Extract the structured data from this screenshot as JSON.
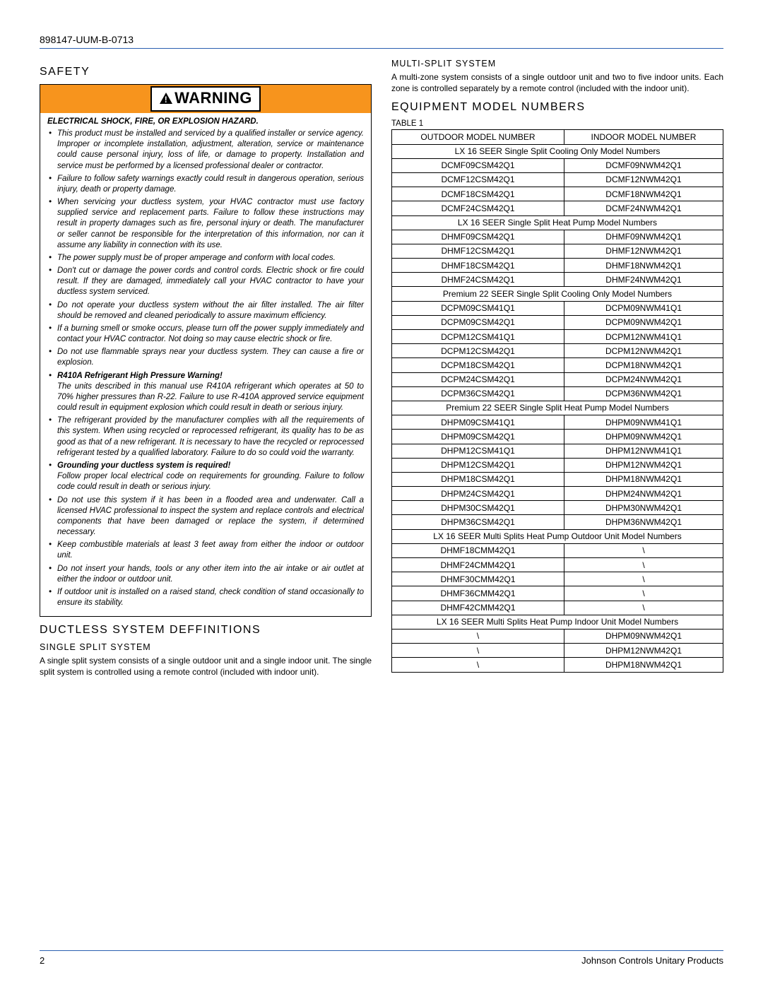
{
  "doc_id": "898147-UUM-B-0713",
  "colors": {
    "rule": "#2a5fb0",
    "warning_bg": "#f7941d",
    "text": "#000000",
    "page_bg": "#ffffff"
  },
  "left": {
    "safety_title": "SAFETY",
    "warning_label": "WARNING",
    "hazard_line": "ELECTRICAL SHOCK, FIRE, OR EXPLOSION HAZARD.",
    "bullets": [
      {
        "text": "This product must be installed and serviced by a qualified installer or service agency. Improper or incomplete installation, adjustment, alteration, service or maintenance could cause personal injury, loss of life, or damage to property. Installation and service must be performed by a licensed professional dealer or contractor."
      },
      {
        "text": "Failure to follow safety warnings exactly could result in dangerous operation, serious injury, death or property damage."
      },
      {
        "text": "When servicing your ductless system, your HVAC contractor must use factory supplied service and replacement parts. Failure to follow these instructions may result in property damages such as fire, personal injury or death. The manufacturer or seller cannot be responsible for the interpretation of this information, nor can it assume any liability in connection with its use."
      },
      {
        "text": "The power supply must be of proper amperage and conform with local codes."
      },
      {
        "text": "Don't cut or damage the power cords and control cords. Electric shock or fire could result. If they are damaged, immediately call your HVAC contractor to have your ductless system serviced."
      },
      {
        "text": "Do not operate your ductless system without the air filter installed. The air filter should be removed and cleaned periodically to assure maximum efficiency."
      },
      {
        "text": "If a burning smell or smoke occurs, please turn off the power supply immediately and contact your HVAC contractor. Not doing so may cause electric shock or fire."
      },
      {
        "text": "Do not use flammable sprays near your ductless system. They can cause a fire or explosion."
      },
      {
        "lead": "R410A Refrigerant High Pressure Warning!",
        "text": "The units described in this manual use R410A refrigerant which operates at 50 to 70% higher pressures than R-22. Failure to use R-410A approved service equipment could result in equipment explosion which could result in death or serious injury."
      },
      {
        "text": "The refrigerant provided by the manufacturer complies with all the requirements of this system. When using recycled or reprocessed refrigerant, its quality has to be as good as that of a new refrigerant. It is necessary to have the recycled or reprocessed refrigerant tested by a qualified laboratory. Failure to do so could void the warranty."
      },
      {
        "lead": "Grounding your ductless system is required!",
        "text": "Follow proper local electrical code on requirements for grounding. Failure to follow code could result in death or serious injury."
      },
      {
        "text": "Do not use this system if it has been in a flooded area and underwater. Call a licensed HVAC professional to inspect the system and replace controls and electrical components that have been damaged or replace the system, if determined necessary."
      },
      {
        "text": "Keep combustible materials at least 3 feet away from either the indoor or outdoor unit."
      },
      {
        "text": "Do not insert your hands, tools or any other item into the air intake or air outlet at either the indoor or outdoor unit."
      },
      {
        "text": "If outdoor unit is installed on a raised stand, check condition of stand occasionally to ensure its stability."
      }
    ],
    "definitions_title": "DUCTLESS SYSTEM DEFFINITIONS",
    "single_split_title": "SINGLE SPLIT SYSTEM",
    "single_split_text": "A single split system consists of a single outdoor unit and a single indoor unit. The single split system is controlled using a remote control (included with indoor unit)."
  },
  "right": {
    "multi_split_title": "MULTI-SPLIT SYSTEM",
    "multi_split_text": "A multi-zone system consists of a single outdoor unit and two to five indoor units. Each zone is controlled separately by a remote control (included with the indoor unit).",
    "equipment_title": "EQUIPMENT MODEL NUMBERS",
    "table_label": "TABLE 1",
    "table": {
      "col_outdoor": "OUTDOOR MODEL NUMBER",
      "col_indoor": "INDOOR MODEL NUMBER",
      "sections": [
        {
          "header": "LX 16 SEER Single Split Cooling Only Model Numbers",
          "rows": [
            [
              "DCMF09CSM42Q1",
              "DCMF09NWM42Q1"
            ],
            [
              "DCMF12CSM42Q1",
              "DCMF12NWM42Q1"
            ],
            [
              "DCMF18CSM42Q1",
              "DCMF18NWM42Q1"
            ],
            [
              "DCMF24CSM42Q1",
              "DCMF24NWM42Q1"
            ]
          ]
        },
        {
          "header": "LX 16 SEER Single Split Heat Pump Model Numbers",
          "rows": [
            [
              "DHMF09CSM42Q1",
              "DHMF09NWM42Q1"
            ],
            [
              "DHMF12CSM42Q1",
              "DHMF12NWM42Q1"
            ],
            [
              "DHMF18CSM42Q1",
              "DHMF18NWM42Q1"
            ],
            [
              "DHMF24CSM42Q1",
              "DHMF24NWM42Q1"
            ]
          ]
        },
        {
          "header": "Premium 22 SEER Single Split Cooling Only Model Numbers",
          "rows": [
            [
              "DCPM09CSM41Q1",
              "DCPM09NWM41Q1"
            ],
            [
              "DCPM09CSM42Q1",
              "DCPM09NWM42Q1"
            ],
            [
              "DCPM12CSM41Q1",
              "DCPM12NWM41Q1"
            ],
            [
              "DCPM12CSM42Q1",
              "DCPM12NWM42Q1"
            ],
            [
              "DCPM18CSM42Q1",
              "DCPM18NWM42Q1"
            ],
            [
              "DCPM24CSM42Q1",
              "DCPM24NWM42Q1"
            ],
            [
              "DCPM36CSM42Q1",
              "DCPM36NWM42Q1"
            ]
          ]
        },
        {
          "header": "Premium 22 SEER Single Split Heat Pump Model Numbers",
          "rows": [
            [
              "DHPM09CSM41Q1",
              "DHPM09NWM41Q1"
            ],
            [
              "DHPM09CSM42Q1",
              "DHPM09NWM42Q1"
            ],
            [
              "DHPM12CSM41Q1",
              "DHPM12NWM41Q1"
            ],
            [
              "DHPM12CSM42Q1",
              "DHPM12NWM42Q1"
            ],
            [
              "DHPM18CSM42Q1",
              "DHPM18NWM42Q1"
            ],
            [
              "DHPM24CSM42Q1",
              "DHPM24NWM42Q1"
            ],
            [
              "DHPM30CSM42Q1",
              "DHPM30NWM42Q1"
            ],
            [
              "DHPM36CSM42Q1",
              "DHPM36NWM42Q1"
            ]
          ]
        },
        {
          "header": "LX 16 SEER Multi Splits Heat Pump Outdoor Unit Model Numbers",
          "rows": [
            [
              "DHMF18CMM42Q1",
              "\\"
            ],
            [
              "DHMF24CMM42Q1",
              "\\"
            ],
            [
              "DHMF30CMM42Q1",
              "\\"
            ],
            [
              "DHMF36CMM42Q1",
              "\\"
            ],
            [
              "DHMF42CMM42Q1",
              "\\"
            ]
          ]
        },
        {
          "header": "LX 16 SEER Multi Splits Heat Pump Indoor Unit Model Numbers",
          "rows": [
            [
              "\\",
              "DHPM09NWM42Q1"
            ],
            [
              "\\",
              "DHPM12NWM42Q1"
            ],
            [
              "\\",
              "DHPM18NWM42Q1"
            ]
          ]
        }
      ]
    }
  },
  "footer": {
    "page_no": "2",
    "vendor": "Johnson Controls Unitary Products"
  }
}
